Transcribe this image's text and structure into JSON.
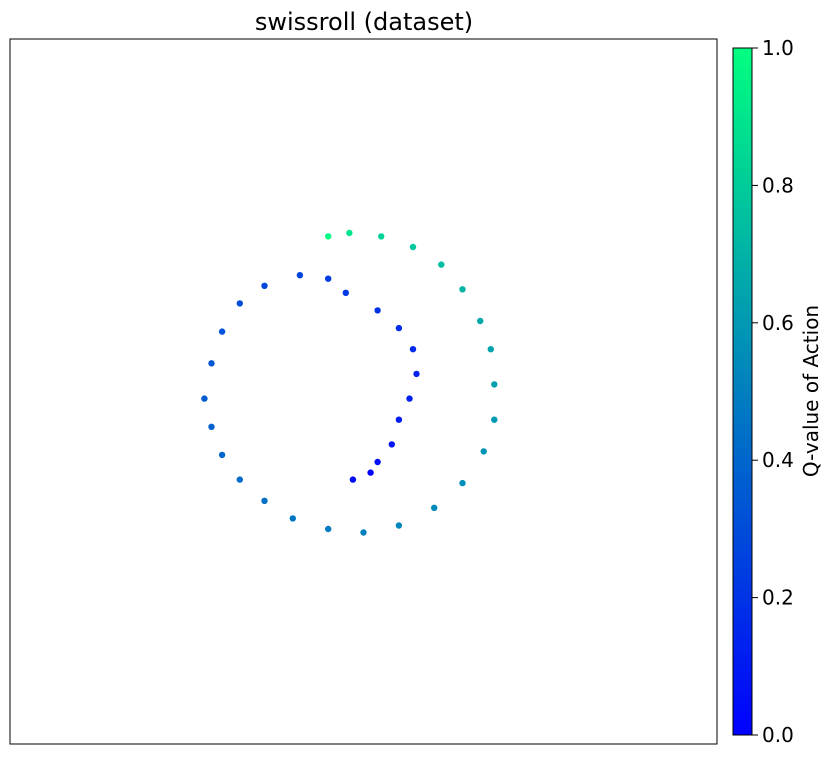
{
  "chart_data": {
    "type": "scatter",
    "title": "swissroll (dataset)",
    "xlabel": "",
    "ylabel": "",
    "x_ticks_shown": false,
    "y_ticks_shown": false,
    "grid": false,
    "xlim": [
      -1.0,
      1.0
    ],
    "ylim": [
      -1.0,
      1.0
    ],
    "colormap": {
      "name": "winter",
      "low": "#0000ff",
      "high": "#00ff80"
    },
    "colorbar": {
      "label": "Q-value of Action",
      "range": [
        0.0,
        1.0
      ],
      "ticks": [
        "0.0",
        "0.2",
        "0.4",
        "0.6",
        "0.8",
        "1.0"
      ]
    },
    "series": [
      {
        "encoding": "points are [x, y, q]; q is color value",
        "points": [
          [
            0.02,
            -0.23,
            0.0
          ],
          [
            -0.03,
            -0.25,
            0.04
          ],
          [
            0.04,
            -0.2,
            0.06
          ],
          [
            0.08,
            -0.15,
            0.08
          ],
          [
            0.1,
            -0.08,
            0.1
          ],
          [
            0.13,
            -0.02,
            0.12
          ],
          [
            0.15,
            0.05,
            0.14
          ],
          [
            0.14,
            0.12,
            0.16
          ],
          [
            0.1,
            0.18,
            0.18
          ],
          [
            0.04,
            0.23,
            0.2
          ],
          [
            -0.05,
            0.28,
            0.22
          ],
          [
            -0.1,
            0.32,
            0.24
          ],
          [
            -0.18,
            0.33,
            0.26
          ],
          [
            -0.28,
            0.3,
            0.28
          ],
          [
            -0.35,
            0.25,
            0.3
          ],
          [
            -0.4,
            0.17,
            0.32
          ],
          [
            -0.43,
            0.08,
            0.34
          ],
          [
            -0.45,
            -0.02,
            0.36
          ],
          [
            -0.43,
            -0.1,
            0.38
          ],
          [
            -0.4,
            -0.18,
            0.4
          ],
          [
            -0.35,
            -0.25,
            0.42
          ],
          [
            -0.28,
            -0.31,
            0.44
          ],
          [
            -0.2,
            -0.36,
            0.46
          ],
          [
            -0.1,
            -0.39,
            0.48
          ],
          [
            0.0,
            -0.4,
            0.5
          ],
          [
            0.1,
            -0.38,
            0.52
          ],
          [
            0.2,
            -0.33,
            0.54
          ],
          [
            0.28,
            -0.26,
            0.56
          ],
          [
            0.34,
            -0.17,
            0.58
          ],
          [
            0.37,
            -0.08,
            0.6
          ],
          [
            0.37,
            0.02,
            0.62
          ],
          [
            0.36,
            0.12,
            0.64
          ],
          [
            0.33,
            0.2,
            0.66
          ],
          [
            0.28,
            0.29,
            0.7
          ],
          [
            0.22,
            0.36,
            0.74
          ],
          [
            0.14,
            0.41,
            0.78
          ],
          [
            0.05,
            0.44,
            0.82
          ],
          [
            -0.04,
            0.45,
            0.9
          ],
          [
            -0.1,
            0.44,
            0.98
          ]
        ]
      }
    ]
  }
}
